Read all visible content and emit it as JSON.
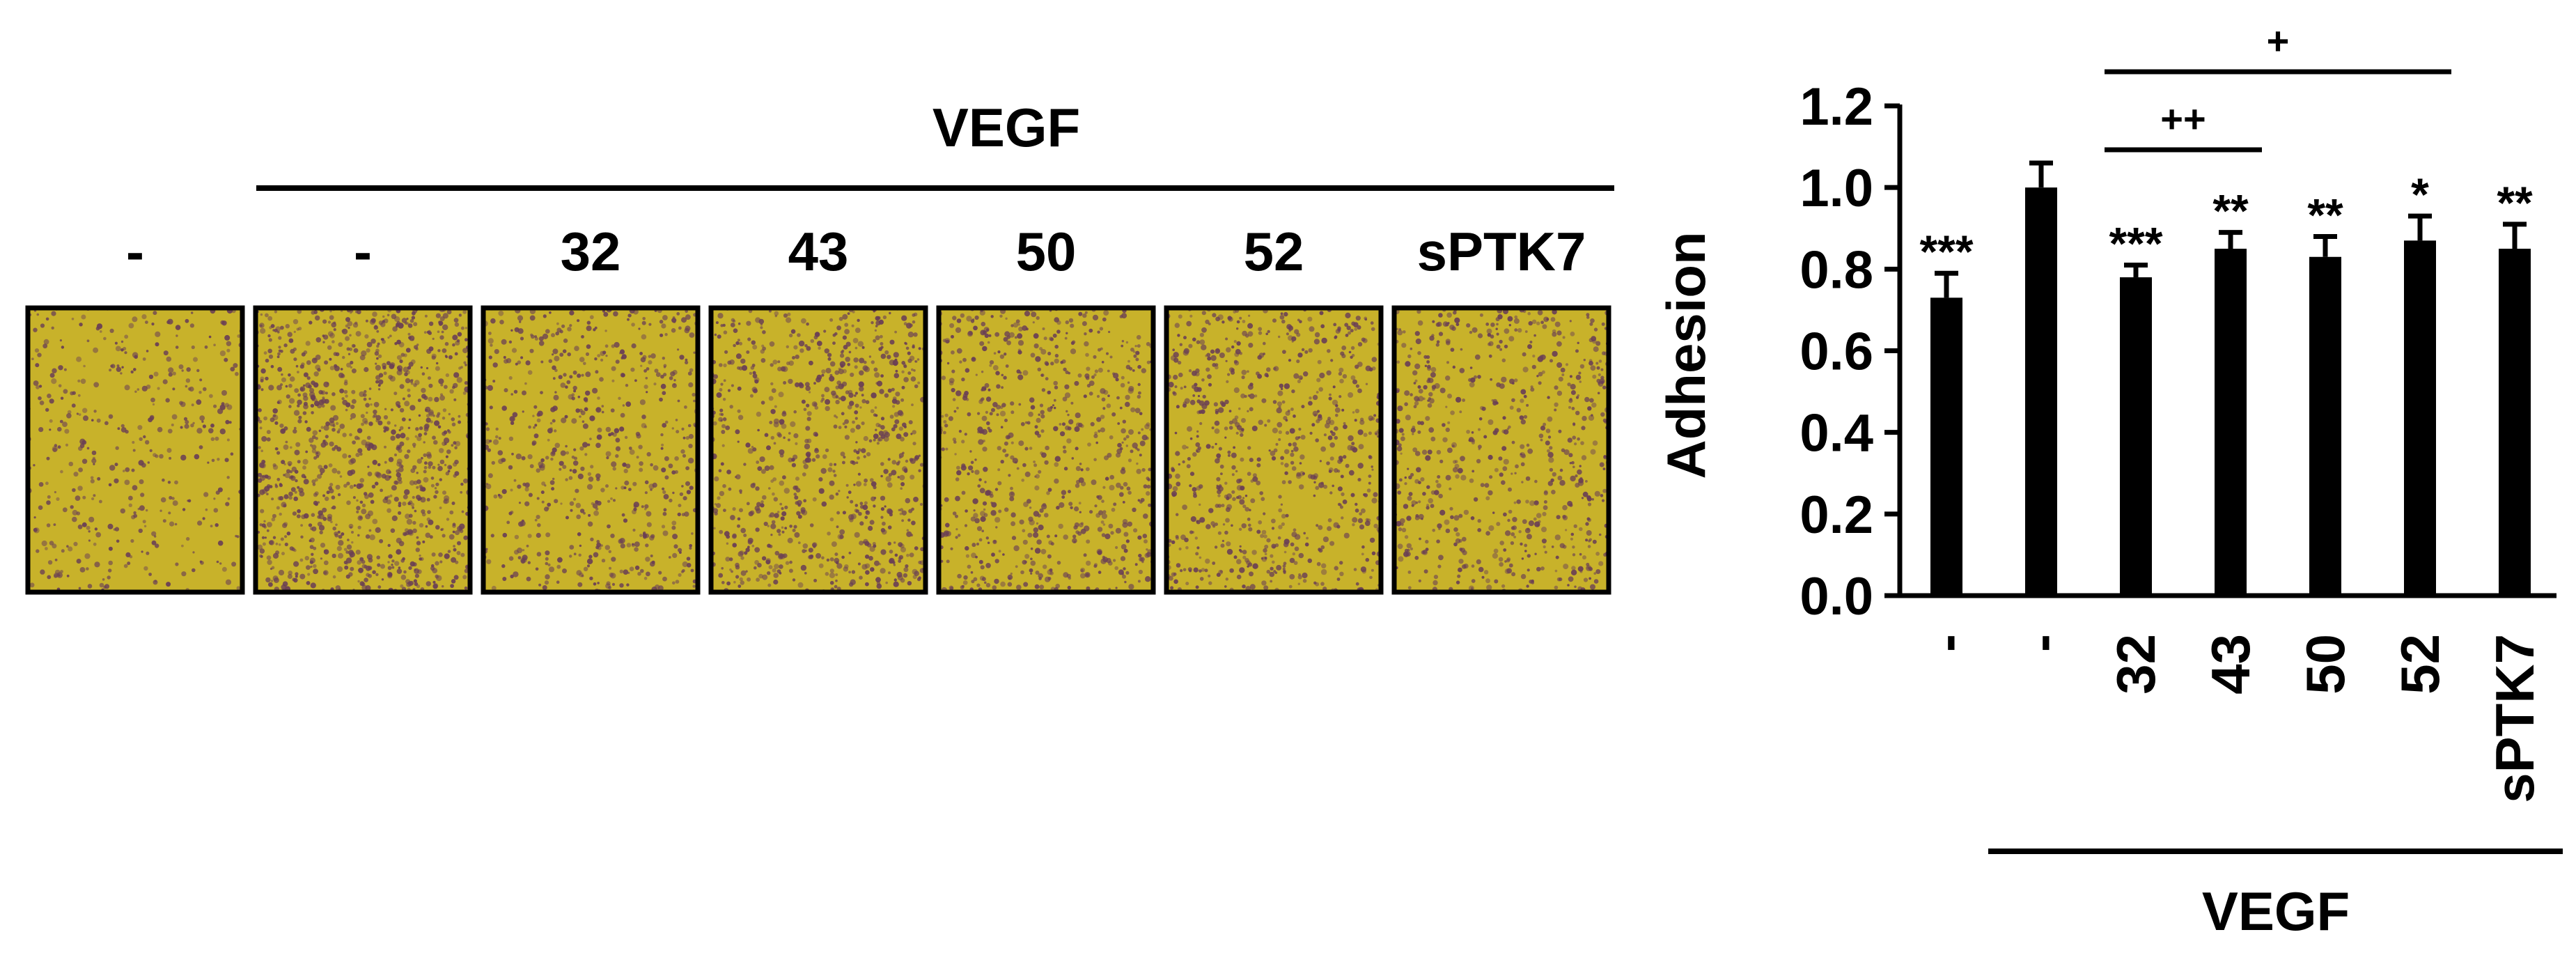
{
  "colors": {
    "background": "#ffffff",
    "ink": "#000000",
    "micrograph_base": "#c8b22a",
    "cell_stain": "#6a3f55"
  },
  "micrographs": {
    "group_label": "VEGF",
    "panels": [
      {
        "label": "-",
        "cell_density": 0.22
      },
      {
        "label": "-",
        "cell_density": 0.85
      },
      {
        "label": "32",
        "cell_density": 0.42
      },
      {
        "label": "43",
        "cell_density": 0.6
      },
      {
        "label": "50",
        "cell_density": 0.5
      },
      {
        "label": "52",
        "cell_density": 0.52
      },
      {
        "label": "sPTK7",
        "cell_density": 0.45
      }
    ]
  },
  "chart_data": {
    "type": "bar",
    "categories": [
      "-",
      "-",
      "32",
      "43",
      "50",
      "52",
      "sPTK7"
    ],
    "values": [
      0.73,
      1.0,
      0.78,
      0.85,
      0.83,
      0.87,
      0.85
    ],
    "errors": [
      0.06,
      0.06,
      0.03,
      0.04,
      0.05,
      0.06,
      0.06
    ],
    "significance": [
      "***",
      "",
      "***",
      "**",
      "**",
      "*",
      "**"
    ],
    "comparisons": [
      {
        "from": "32",
        "to": "43",
        "label": "++"
      },
      {
        "from": "32",
        "to": "52",
        "label": "+"
      }
    ],
    "ylabel": "Adhesion",
    "xlabel": "",
    "ylim": [
      0.0,
      1.2
    ],
    "yticks": [
      "0.0",
      "0.2",
      "0.4",
      "0.6",
      "0.8",
      "1.0",
      "1.2"
    ],
    "group_label": "VEGF",
    "bar_color": "#000000",
    "grid": false
  }
}
